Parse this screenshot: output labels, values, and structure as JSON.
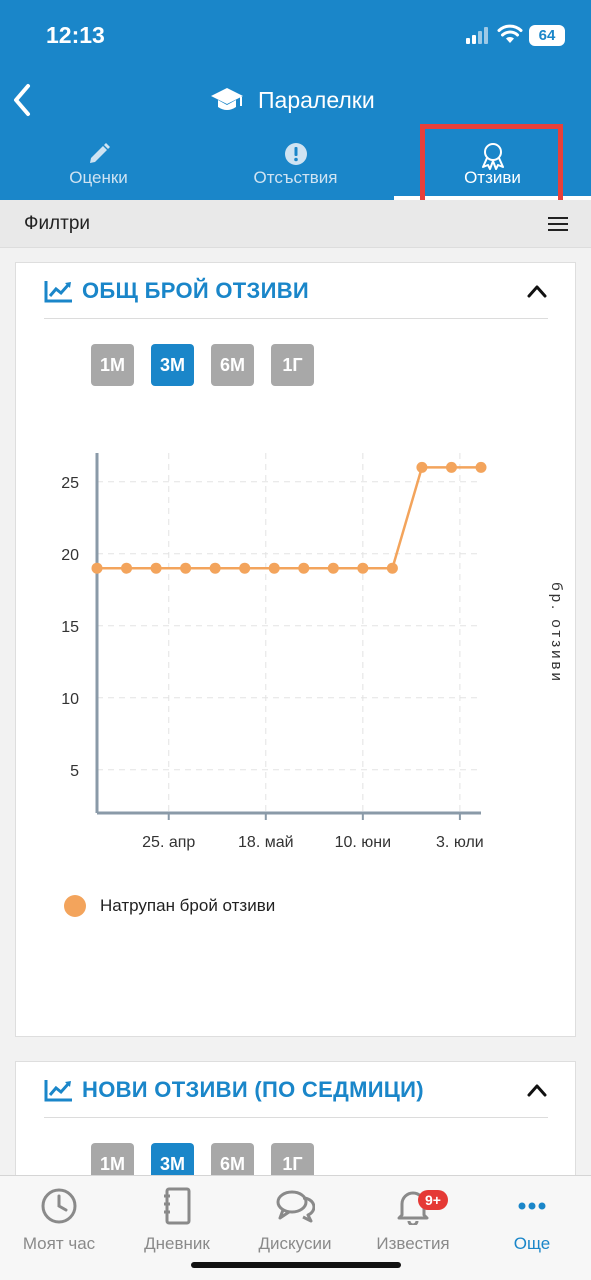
{
  "status_bar": {
    "time": "12:13",
    "battery": "64"
  },
  "header": {
    "title": "Паралелки",
    "tabs": [
      {
        "label": "Оценки",
        "icon": "pencil-icon"
      },
      {
        "label": "Отсъствия",
        "icon": "exclamation-icon"
      },
      {
        "label": "Отзиви",
        "icon": "award-ribbon-icon"
      }
    ],
    "active_tab": "Отзиви"
  },
  "filters": {
    "label": "Филтри"
  },
  "cards": [
    {
      "title": "ОБЩ БРОЙ ОТЗИВИ",
      "ranges": [
        "1М",
        "3М",
        "6М",
        "1Г"
      ],
      "active_range": "3М"
    },
    {
      "title": "НОВИ ОТЗИВИ (ПО СЕДМИЦИ)",
      "ranges": [
        "1М",
        "3М",
        "6М",
        "1Г"
      ],
      "active_range": "3М"
    }
  ],
  "chart_data": {
    "type": "line",
    "x": [
      "2024-04-08",
      "2024-04-15",
      "2024-04-22",
      "2024-04-29",
      "2024-05-06",
      "2024-05-13",
      "2024-05-20",
      "2024-05-27",
      "2024-06-03",
      "2024-06-10",
      "2024-06-17",
      "2024-06-24",
      "2024-07-01",
      "2024-07-08"
    ],
    "x_tick_labels": [
      "25. апр",
      "18. май",
      "10. юни",
      "3. юли"
    ],
    "x_tick_dates": [
      "2024-04-25",
      "2024-05-18",
      "2024-06-10",
      "2024-07-03"
    ],
    "xlim": [
      "2024-04-08",
      "2024-07-08"
    ],
    "series": [
      {
        "name": "Натрупан брой отзиви",
        "values": [
          19,
          19,
          19,
          19,
          19,
          19,
          19,
          19,
          19,
          19,
          19,
          26,
          26,
          26
        ],
        "color": "#f3a45c"
      }
    ],
    "ylabel": "бр. отзиви",
    "ylim": [
      2,
      27
    ],
    "yticks": [
      5,
      10,
      15,
      20,
      25
    ],
    "grid": true,
    "legend_position": "bottom-left"
  },
  "bottom_nav": [
    {
      "label": "Моят час",
      "icon": "clock-icon"
    },
    {
      "label": "Дневник",
      "icon": "notebook-icon"
    },
    {
      "label": "Дискусии",
      "icon": "chat-bubbles-icon"
    },
    {
      "label": "Известия",
      "icon": "bell-icon",
      "badge": "9+"
    },
    {
      "label": "Още",
      "icon": "more-dots-icon"
    }
  ],
  "colors": {
    "brand": "#1a86c9",
    "highlight": "#e8403a",
    "series": "#f3a45c"
  }
}
